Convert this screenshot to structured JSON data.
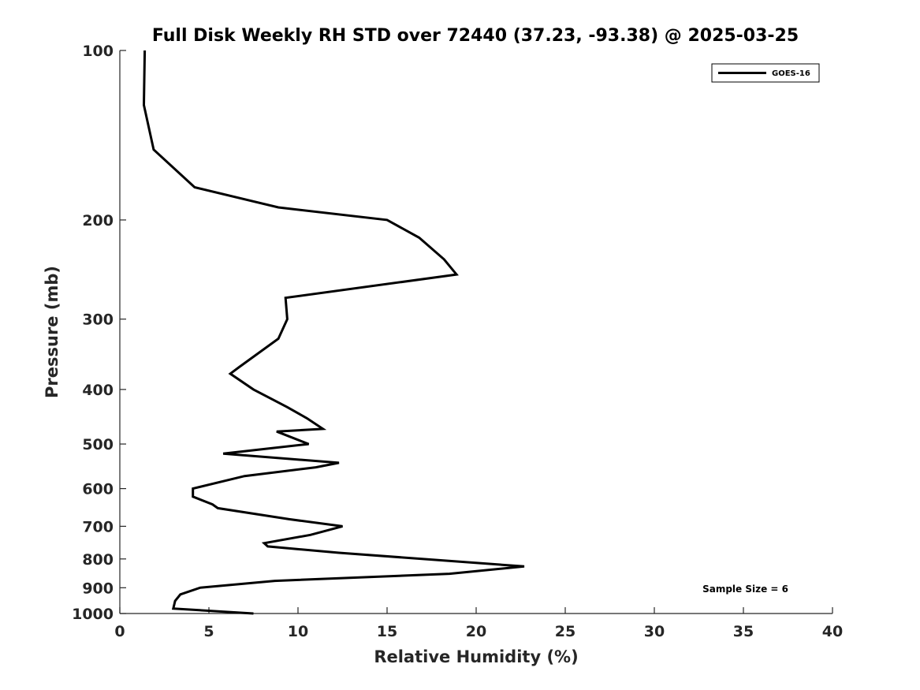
{
  "chart_data": {
    "type": "line",
    "title": "Full Disk Weekly RH STD over 72440 (37.23, -93.38) @ 2025-03-25",
    "xlabel": "Relative Humidity (%)",
    "ylabel": "Pressure (mb)",
    "xlim": [
      0,
      40
    ],
    "ylim": [
      100,
      1000
    ],
    "y_scale": "log",
    "y_reversed": true,
    "x_ticks": [
      "0",
      "5",
      "10",
      "15",
      "20",
      "25",
      "30",
      "35",
      "40"
    ],
    "y_ticks": [
      "100",
      "200",
      "300",
      "400",
      "500",
      "600",
      "700",
      "800",
      "900",
      "1000"
    ],
    "grid": false,
    "legend_position": "top-right",
    "annotation": "Sample Size = 6",
    "series": [
      {
        "name": "GOES-16",
        "color": "#000000",
        "points": [
          [
            1.4,
            100
          ],
          [
            1.35,
            125
          ],
          [
            1.9,
            150
          ],
          [
            4.2,
            175
          ],
          [
            8.9,
            190
          ],
          [
            15.0,
            200
          ],
          [
            16.8,
            215
          ],
          [
            18.2,
            235
          ],
          [
            18.9,
            250
          ],
          [
            9.3,
            275
          ],
          [
            9.4,
            300
          ],
          [
            8.9,
            325
          ],
          [
            6.7,
            365
          ],
          [
            6.2,
            375
          ],
          [
            7.5,
            400
          ],
          [
            9.4,
            430
          ],
          [
            10.5,
            450
          ],
          [
            11.4,
            470
          ],
          [
            8.8,
            475
          ],
          [
            10.6,
            500
          ],
          [
            5.8,
            520
          ],
          [
            12.3,
            540
          ],
          [
            11.0,
            550
          ],
          [
            7.0,
            570
          ],
          [
            4.1,
            600
          ],
          [
            4.1,
            620
          ],
          [
            5.2,
            640
          ],
          [
            5.5,
            650
          ],
          [
            9.5,
            680
          ],
          [
            12.5,
            700
          ],
          [
            10.7,
            725
          ],
          [
            8.1,
            750
          ],
          [
            8.3,
            760
          ],
          [
            12.3,
            780
          ],
          [
            22.7,
            825
          ],
          [
            18.5,
            850
          ],
          [
            8.7,
            875
          ],
          [
            4.5,
            900
          ],
          [
            3.4,
            925
          ],
          [
            3.1,
            950
          ],
          [
            3.0,
            980
          ],
          [
            7.5,
            1000
          ]
        ]
      }
    ]
  }
}
